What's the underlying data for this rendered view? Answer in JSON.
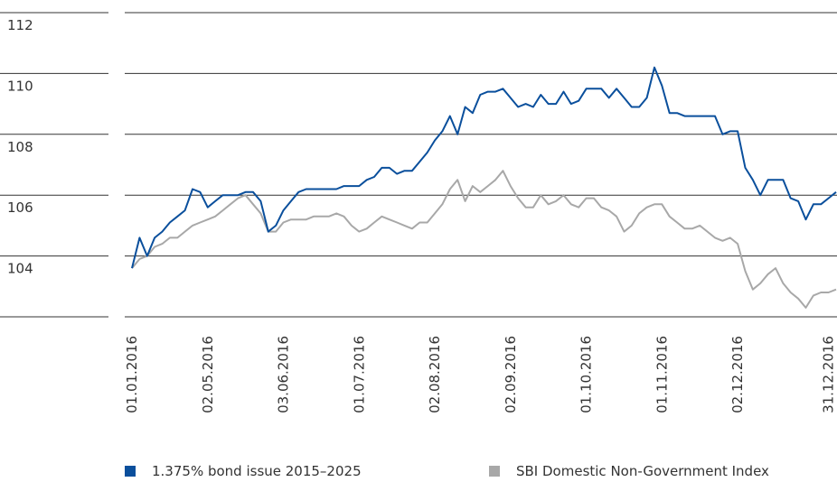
{
  "chart_data": {
    "type": "line",
    "categories": [
      "01.01.2016",
      null,
      null,
      null,
      null,
      null,
      null,
      null,
      null,
      null,
      "02.05.2016",
      null,
      null,
      null,
      null,
      null,
      null,
      null,
      null,
      null,
      "03.06.2016",
      null,
      null,
      null,
      null,
      null,
      null,
      null,
      null,
      null,
      "01.07.2016",
      null,
      null,
      null,
      null,
      null,
      null,
      null,
      null,
      null,
      "02.08.2016",
      null,
      null,
      null,
      null,
      null,
      null,
      null,
      null,
      null,
      "02.09.2016",
      null,
      null,
      null,
      null,
      null,
      null,
      null,
      null,
      null,
      "01.10.2016",
      null,
      null,
      null,
      null,
      null,
      null,
      null,
      null,
      null,
      "01.11.2016",
      null,
      null,
      null,
      null,
      null,
      null,
      null,
      null,
      null,
      "02.12.2016",
      null,
      null,
      null,
      null,
      null,
      null,
      null,
      null,
      null,
      null,
      null,
      "31.12.2016",
      null
    ],
    "series": [
      {
        "name": "1.375% bond issue 2015–2025",
        "color": "#0a4f9c",
        "values": [
          103.6,
          104.6,
          104.0,
          104.6,
          104.8,
          105.1,
          105.3,
          105.5,
          106.2,
          106.1,
          105.6,
          105.8,
          106.0,
          106.0,
          106.0,
          106.1,
          106.1,
          105.8,
          104.8,
          105.0,
          105.5,
          105.8,
          106.1,
          106.2,
          106.2,
          106.2,
          106.2,
          106.2,
          106.3,
          106.3,
          106.3,
          106.5,
          106.6,
          106.9,
          106.9,
          106.7,
          106.8,
          106.8,
          107.1,
          107.4,
          107.8,
          108.1,
          108.6,
          108.0,
          108.9,
          108.7,
          109.3,
          109.4,
          109.4,
          109.5,
          109.2,
          108.9,
          109.0,
          108.9,
          109.3,
          109.0,
          109.0,
          109.4,
          109.0,
          109.1,
          109.5,
          109.5,
          109.5,
          109.2,
          109.5,
          109.2,
          108.9,
          108.9,
          109.2,
          110.2,
          109.6,
          108.7,
          108.7,
          108.6,
          108.6,
          108.6,
          108.6,
          108.6,
          108.0,
          108.1,
          108.1,
          106.9,
          106.5,
          106.0,
          106.5,
          106.5,
          106.5,
          105.9,
          105.8,
          105.2,
          105.7,
          105.7,
          105.9,
          106.1
        ]
      },
      {
        "name": "SBI Domestic Non-Government Index",
        "color": "#a8a8a8",
        "values": [
          103.6,
          103.9,
          104.0,
          104.3,
          104.4,
          104.6,
          104.6,
          104.8,
          105.0,
          105.1,
          105.2,
          105.3,
          105.5,
          105.7,
          105.9,
          106.0,
          105.7,
          105.4,
          104.8,
          104.8,
          105.1,
          105.2,
          105.2,
          105.2,
          105.3,
          105.3,
          105.3,
          105.4,
          105.3,
          105.0,
          104.8,
          104.9,
          105.1,
          105.3,
          105.2,
          105.1,
          105.0,
          104.9,
          105.1,
          105.1,
          105.4,
          105.7,
          106.2,
          106.5,
          105.8,
          106.3,
          106.1,
          106.3,
          106.5,
          106.8,
          106.3,
          105.9,
          105.6,
          105.6,
          106.0,
          105.7,
          105.8,
          106.0,
          105.7,
          105.6,
          105.9,
          105.9,
          105.6,
          105.5,
          105.3,
          104.8,
          105.0,
          105.4,
          105.6,
          105.7,
          105.7,
          105.3,
          105.1,
          104.9,
          104.9,
          105.0,
          104.8,
          104.6,
          104.5,
          104.6,
          104.4,
          103.5,
          102.9,
          103.1,
          103.4,
          103.6,
          103.1,
          102.8,
          102.6,
          102.3,
          102.7,
          102.8,
          102.8,
          102.9
        ]
      }
    ],
    "ylim": [
      102,
      112
    ],
    "yticks": [
      104,
      106,
      108,
      110,
      112
    ],
    "grid": true
  }
}
